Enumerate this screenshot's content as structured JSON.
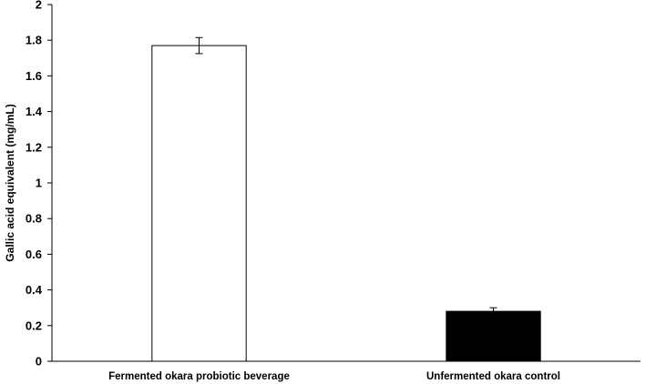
{
  "chart_data": {
    "type": "bar",
    "title": "",
    "xlabel": "",
    "ylabel": "Gallic acid equivalent (mg/mL)",
    "categories": [
      "Fermented okara probiotic beverage",
      "Unfermented okara control"
    ],
    "values": [
      1.77,
      0.28
    ],
    "errors": [
      0.045,
      0.02
    ],
    "bar_colors": [
      "#ffffff",
      "#000000"
    ],
    "bar_edge_color": "#000000",
    "ylim": [
      0,
      2
    ],
    "yticks": [
      0,
      0.2,
      0.4,
      0.6,
      0.8,
      1,
      1.2,
      1.4,
      1.6,
      1.8,
      2
    ],
    "ytick_labels": [
      "0",
      "0.2",
      "0.4",
      "0.6",
      "0.8",
      "1",
      "1.2",
      "1.4",
      "1.6",
      "1.8",
      "2"
    ],
    "grid": false,
    "legend": "none"
  }
}
